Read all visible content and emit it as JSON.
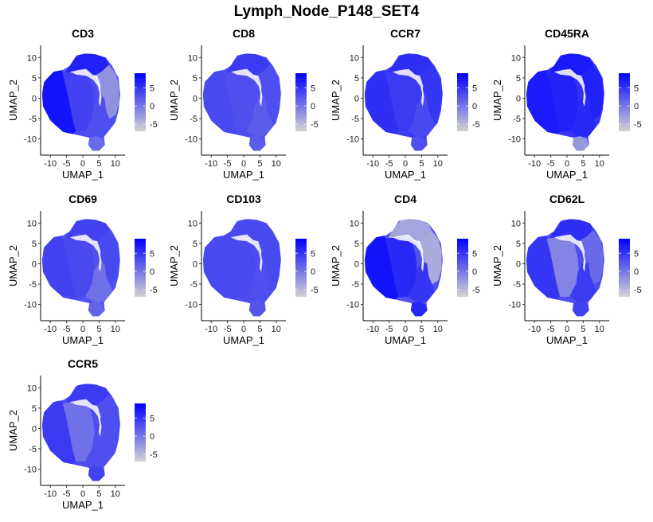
{
  "chart_data": {
    "type": "scatter",
    "subtype": "feature-plot-umap",
    "title": "Lymph_Node_P148_SET4",
    "xlabel": "UMAP_1",
    "ylabel": "UMAP_2",
    "xlim": [
      -13,
      13
    ],
    "ylim": [
      -14,
      13
    ],
    "xticks": [
      -10,
      -5,
      0,
      5,
      10
    ],
    "yticks": [
      10,
      5,
      0,
      -5,
      -10
    ],
    "grid": false,
    "legend": {
      "placement": "right",
      "type": "colorbar",
      "range": [
        -7,
        9
      ],
      "ticks": [
        5,
        0,
        -5
      ],
      "low_color": "#D3D3D3",
      "high_color": "#0000FF"
    },
    "layout": {
      "rows": 3,
      "cols": 4
    },
    "regions": [
      "left_lobe",
      "center",
      "top",
      "right_arc",
      "lower_right",
      "island"
    ],
    "panels": [
      {
        "feature": "CD3",
        "levels": {
          "left_lobe": 7.5,
          "center": 4.0,
          "top": 6.5,
          "right_arc": -2.0,
          "lower_right": 3.0,
          "island": 1.0
        }
      },
      {
        "feature": "CD8",
        "levels": {
          "left_lobe": 3.5,
          "center": 3.0,
          "top": 4.5,
          "right_arc": 3.0,
          "lower_right": 2.0,
          "island": 2.0
        }
      },
      {
        "feature": "CCR7",
        "levels": {
          "left_lobe": 5.5,
          "center": 4.5,
          "top": 5.5,
          "right_arc": 5.0,
          "lower_right": 3.5,
          "island": 3.0
        }
      },
      {
        "feature": "CD45RA",
        "levels": {
          "left_lobe": 7.0,
          "center": 6.5,
          "top": 7.0,
          "right_arc": 6.5,
          "lower_right": 6.0,
          "island": -2.5
        }
      },
      {
        "feature": "CD69",
        "levels": {
          "left_lobe": 4.0,
          "center": 3.5,
          "top": 4.0,
          "right_arc": 3.5,
          "lower_right": 0.5,
          "island": 1.5
        }
      },
      {
        "feature": "CD103",
        "levels": {
          "left_lobe": 3.5,
          "center": 3.5,
          "top": 3.5,
          "right_arc": 3.5,
          "lower_right": 3.0,
          "island": 2.5
        }
      },
      {
        "feature": "CD4",
        "levels": {
          "left_lobe": 7.5,
          "center": 6.0,
          "top": -3.5,
          "right_arc": -4.0,
          "lower_right": 5.0,
          "island": 6.0
        }
      },
      {
        "feature": "CD62L",
        "levels": {
          "left_lobe": 5.0,
          "center": -1.0,
          "top": 5.5,
          "right_arc": 1.0,
          "lower_right": 4.5,
          "island": 4.0
        }
      },
      {
        "feature": "CCR5",
        "levels": {
          "left_lobe": 4.5,
          "center": 0.5,
          "top": 4.5,
          "right_arc": 3.0,
          "lower_right": 3.0,
          "island": 4.0
        }
      }
    ]
  }
}
